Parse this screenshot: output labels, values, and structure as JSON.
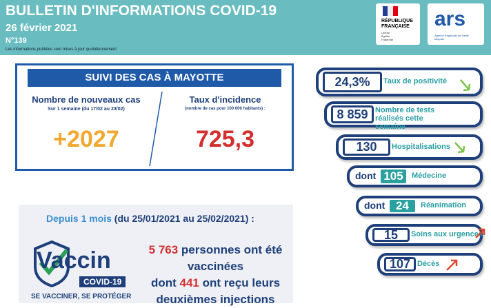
{
  "header": {
    "title": "BULLETIN D'INFORMATIONS COVID-19",
    "date": "26 février 2021",
    "number": "N°139",
    "note": "Les informations publiées sont mises à jour quotidiennement"
  },
  "logos": {
    "republique": "RÉPUBLIQUE FRANÇAISE",
    "motto": "Liberté Égalité Fraternité",
    "ars": "ars",
    "ars_sub": "Agence Régionale de Santé Mayotte"
  },
  "cases": {
    "title": "SUIVI DES CAS À MAYOTTE",
    "new_cases": {
      "label": "Nombre de nouveaux cas",
      "period": "Sur 1 semaine (du 17/02 au 23/02)",
      "value": "+2027"
    },
    "incidence": {
      "label": "Taux d'incidence",
      "note": "(nombre de cas pour 100 000 habitants) :",
      "value": "725,3"
    }
  },
  "vaccine": {
    "period_lead": "Depuis 1 mois",
    "period_rest": " (du 25/01/2021 au 25/02/2021) :",
    "logo_word": "Vaccin",
    "logo_tag": "COVID-19",
    "logo_slogan": "SE VACCINER, SE PROTÉGER",
    "count": "5 763",
    "count_text": " personnes ont été vaccinées",
    "second_lead": "dont ",
    "second_count": "441",
    "second_text": " ont reçu leurs deuxièmes injections"
  },
  "indicators": [
    {
      "value": "24,3%",
      "label": "Taux de positivité"
    },
    {
      "value": "8 859",
      "label": "Nombre de tests réalisés cette semaine"
    },
    {
      "value": "130",
      "label": "Hospitalisations"
    },
    {
      "prefix": "dont",
      "value": "105",
      "label": "Médecine"
    },
    {
      "prefix": "dont",
      "value": "24",
      "label": "Réanimation"
    },
    {
      "value": "15",
      "label": "Soins aux urgences"
    },
    {
      "value": "107",
      "label": "Décès"
    }
  ]
}
